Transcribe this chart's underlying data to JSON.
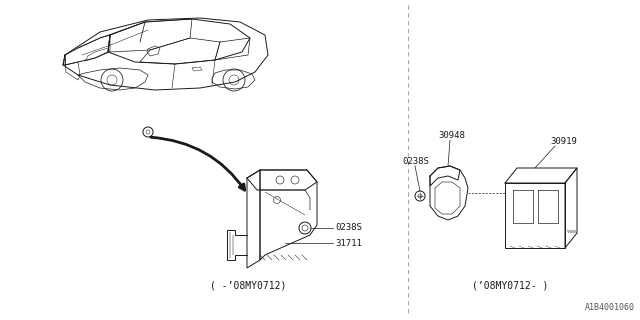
{
  "background_color": "#ffffff",
  "line_color": "#1a1a1a",
  "fig_width": 6.4,
  "fig_height": 3.2,
  "dpi": 100,
  "part_numbers": {
    "left_bolt": "0238S",
    "left_bracket": "31711",
    "right_bolt": "0238S",
    "right_bracket": "30948",
    "right_unit": "30919"
  },
  "captions": {
    "left": "( -’08MY0712)",
    "right": "(’08MY0712- )"
  },
  "watermark": "A1B4001060"
}
